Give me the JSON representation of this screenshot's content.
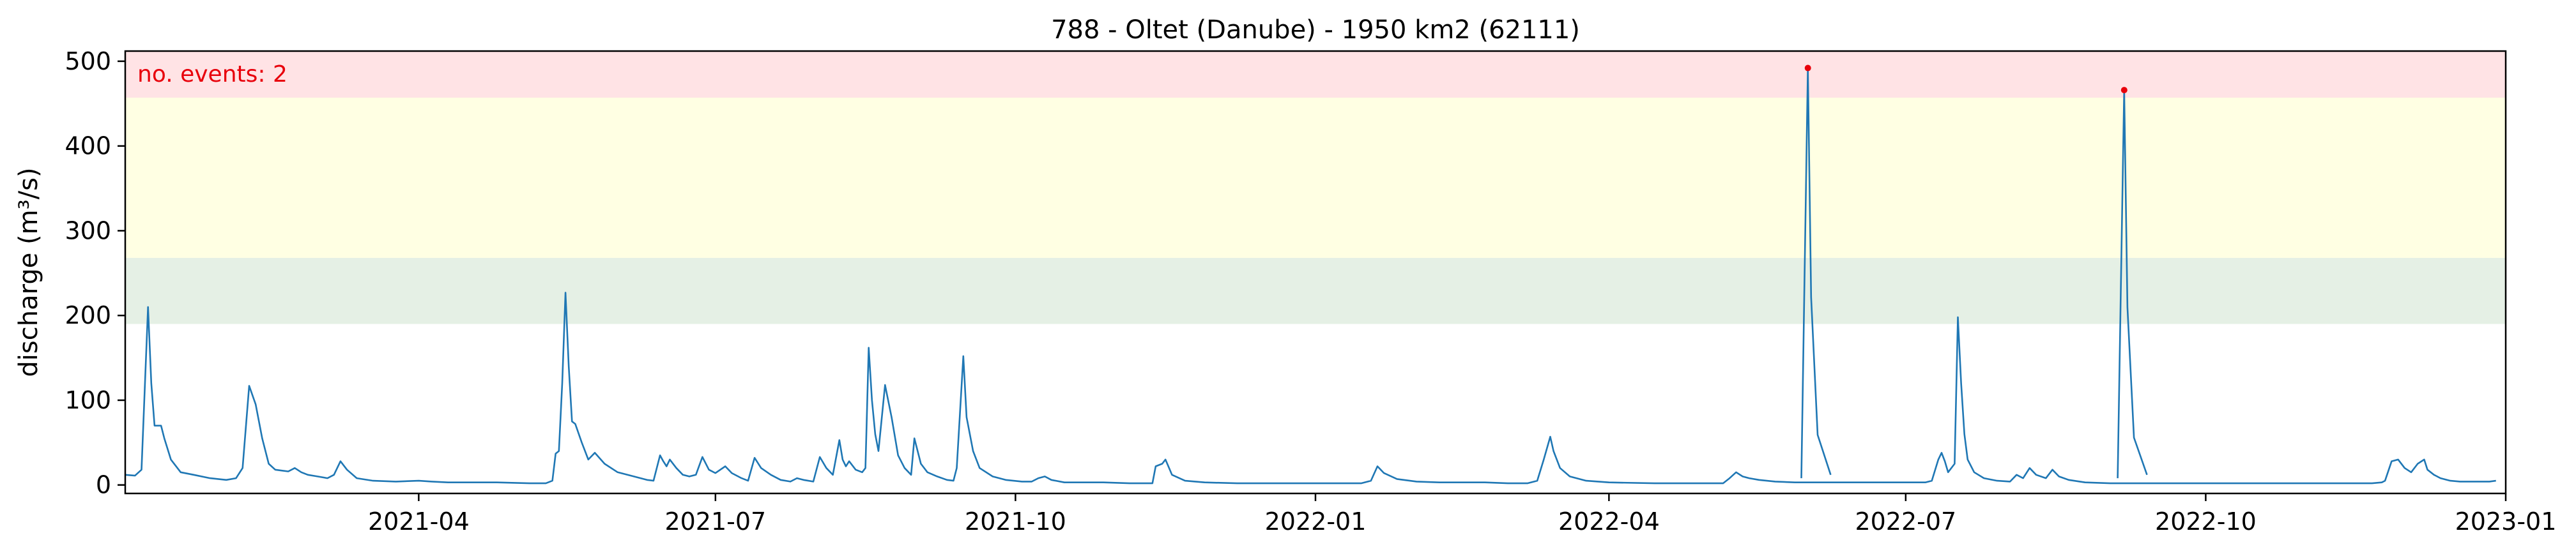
{
  "chart_data": {
    "type": "line",
    "title": "788 - Oltet (Danube) - 1950 km2 (62111)",
    "xlabel": "",
    "ylabel": "discharge (m³/s)",
    "xlim": [
      "2021-01-01",
      "2023-01-01"
    ],
    "ylim": [
      -10,
      512
    ],
    "yticks": [
      0,
      100,
      200,
      300,
      400,
      500
    ],
    "ytick_labels": [
      "0",
      "100",
      "200",
      "300",
      "400",
      "500"
    ],
    "xticks": [
      "2021-04-01",
      "2021-07-01",
      "2021-10-01",
      "2022-01-01",
      "2022-04-01",
      "2022-07-01",
      "2022-10-01",
      "2023-01-01"
    ],
    "xtick_labels": [
      "2021-04",
      "2021-07",
      "2021-10",
      "2022-01",
      "2022-04",
      "2022-07",
      "2022-10",
      "2023-01"
    ],
    "grid": false,
    "bands": [
      {
        "name": "band-green",
        "from": 190,
        "to": 268,
        "color": "#e5f0e5"
      },
      {
        "name": "band-yellow",
        "from": 268,
        "to": 457,
        "color": "#ffffe3"
      },
      {
        "name": "band-red",
        "from": 457,
        "to": 512,
        "color": "#ffe3e5"
      }
    ],
    "annotation": {
      "text": "no. events: 2",
      "color": "#e8000b",
      "position": "top-left"
    },
    "line_color": "#1f77b4",
    "event_color": "#e8000b",
    "events": [
      {
        "x": "2022-06-01",
        "y": 492
      },
      {
        "x": "2022-09-06",
        "y": 466
      }
    ],
    "series": [
      {
        "color": "#1f77b4",
        "points": [
          [
            "2021-01-01",
            12
          ],
          [
            "2021-01-04",
            11
          ],
          [
            "2021-01-06",
            18
          ],
          [
            "2021-01-08",
            210
          ],
          [
            "2021-01-09",
            120
          ],
          [
            "2021-01-10",
            70
          ],
          [
            "2021-01-12",
            70
          ],
          [
            "2021-01-13",
            55
          ],
          [
            "2021-01-15",
            30
          ],
          [
            "2021-01-18",
            15
          ],
          [
            "2021-01-22",
            12
          ],
          [
            "2021-01-27",
            8
          ],
          [
            "2021-02-01",
            6
          ],
          [
            "2021-02-04",
            8
          ],
          [
            "2021-02-06",
            20
          ],
          [
            "2021-02-08",
            117
          ],
          [
            "2021-02-10",
            95
          ],
          [
            "2021-02-12",
            55
          ],
          [
            "2021-02-14",
            25
          ],
          [
            "2021-02-16",
            18
          ],
          [
            "2021-02-18",
            17
          ],
          [
            "2021-02-20",
            16
          ],
          [
            "2021-02-22",
            20
          ],
          [
            "2021-02-24",
            15
          ],
          [
            "2021-02-26",
            12
          ],
          [
            "2021-03-01",
            10
          ],
          [
            "2021-03-04",
            8
          ],
          [
            "2021-03-06",
            12
          ],
          [
            "2021-03-08",
            28
          ],
          [
            "2021-03-10",
            18
          ],
          [
            "2021-03-13",
            8
          ],
          [
            "2021-03-18",
            5
          ],
          [
            "2021-03-25",
            4
          ],
          [
            "2021-04-01",
            5
          ],
          [
            "2021-04-05",
            4
          ],
          [
            "2021-04-10",
            3
          ],
          [
            "2021-04-15",
            3
          ],
          [
            "2021-04-20",
            3
          ],
          [
            "2021-04-25",
            3
          ],
          [
            "2021-05-05",
            2
          ],
          [
            "2021-05-10",
            2
          ],
          [
            "2021-05-12",
            5
          ],
          [
            "2021-05-13",
            37
          ],
          [
            "2021-05-14",
            40
          ],
          [
            "2021-05-15",
            120
          ],
          [
            "2021-05-16",
            227
          ],
          [
            "2021-05-17",
            140
          ],
          [
            "2021-05-18",
            75
          ],
          [
            "2021-05-19",
            72
          ],
          [
            "2021-05-21",
            50
          ],
          [
            "2021-05-23",
            30
          ],
          [
            "2021-05-25",
            38
          ],
          [
            "2021-05-28",
            25
          ],
          [
            "2021-06-01",
            15
          ],
          [
            "2021-06-06",
            10
          ],
          [
            "2021-06-10",
            6
          ],
          [
            "2021-06-12",
            5
          ],
          [
            "2021-06-14",
            35
          ],
          [
            "2021-06-15",
            28
          ],
          [
            "2021-06-16",
            22
          ],
          [
            "2021-06-17",
            30
          ],
          [
            "2021-06-19",
            20
          ],
          [
            "2021-06-21",
            12
          ],
          [
            "2021-06-23",
            10
          ],
          [
            "2021-06-25",
            12
          ],
          [
            "2021-06-27",
            33
          ],
          [
            "2021-06-29",
            18
          ],
          [
            "2021-07-01",
            14
          ],
          [
            "2021-07-04",
            22
          ],
          [
            "2021-07-06",
            14
          ],
          [
            "2021-07-09",
            8
          ],
          [
            "2021-07-11",
            5
          ],
          [
            "2021-07-13",
            32
          ],
          [
            "2021-07-15",
            20
          ],
          [
            "2021-07-18",
            12
          ],
          [
            "2021-07-21",
            6
          ],
          [
            "2021-07-24",
            4
          ],
          [
            "2021-07-26",
            8
          ],
          [
            "2021-07-28",
            6
          ],
          [
            "2021-07-31",
            4
          ],
          [
            "2021-08-02",
            33
          ],
          [
            "2021-08-04",
            20
          ],
          [
            "2021-08-06",
            12
          ],
          [
            "2021-08-08",
            53
          ],
          [
            "2021-08-09",
            30
          ],
          [
            "2021-08-10",
            22
          ],
          [
            "2021-08-11",
            28
          ],
          [
            "2021-08-13",
            18
          ],
          [
            "2021-08-15",
            15
          ],
          [
            "2021-08-16",
            20
          ],
          [
            "2021-08-17",
            162
          ],
          [
            "2021-08-18",
            100
          ],
          [
            "2021-08-19",
            60
          ],
          [
            "2021-08-20",
            40
          ],
          [
            "2021-08-22",
            118
          ],
          [
            "2021-08-24",
            80
          ],
          [
            "2021-08-26",
            35
          ],
          [
            "2021-08-28",
            20
          ],
          [
            "2021-08-30",
            12
          ],
          [
            "2021-08-31",
            55
          ],
          [
            "2021-09-02",
            25
          ],
          [
            "2021-09-04",
            15
          ],
          [
            "2021-09-07",
            10
          ],
          [
            "2021-09-10",
            6
          ],
          [
            "2021-09-12",
            5
          ],
          [
            "2021-09-13",
            20
          ],
          [
            "2021-09-15",
            152
          ],
          [
            "2021-09-16",
            80
          ],
          [
            "2021-09-18",
            40
          ],
          [
            "2021-09-20",
            20
          ],
          [
            "2021-09-24",
            10
          ],
          [
            "2021-09-28",
            6
          ],
          [
            "2021-10-03",
            4
          ],
          [
            "2021-10-06",
            4
          ],
          [
            "2021-10-08",
            8
          ],
          [
            "2021-10-10",
            10
          ],
          [
            "2021-10-12",
            6
          ],
          [
            "2021-10-16",
            3
          ],
          [
            "2021-10-22",
            3
          ],
          [
            "2021-10-28",
            3
          ],
          [
            "2021-11-05",
            2
          ],
          [
            "2021-11-12",
            2
          ],
          [
            "2021-11-13",
            22
          ],
          [
            "2021-11-15",
            25
          ],
          [
            "2021-11-16",
            30
          ],
          [
            "2021-11-18",
            12
          ],
          [
            "2021-11-22",
            5
          ],
          [
            "2021-11-28",
            3
          ],
          [
            "2021-12-08",
            2
          ],
          [
            "2021-12-18",
            2
          ],
          [
            "2021-12-28",
            2
          ],
          [
            "2022-01-08",
            2
          ],
          [
            "2022-01-15",
            2
          ],
          [
            "2022-01-18",
            5
          ],
          [
            "2022-01-20",
            22
          ],
          [
            "2022-01-22",
            14
          ],
          [
            "2022-01-26",
            7
          ],
          [
            "2022-02-01",
            4
          ],
          [
            "2022-02-08",
            3
          ],
          [
            "2022-02-15",
            3
          ],
          [
            "2022-02-22",
            3
          ],
          [
            "2022-03-01",
            2
          ],
          [
            "2022-03-07",
            2
          ],
          [
            "2022-03-10",
            5
          ],
          [
            "2022-03-12",
            30
          ],
          [
            "2022-03-14",
            57
          ],
          [
            "2022-03-15",
            40
          ],
          [
            "2022-03-17",
            20
          ],
          [
            "2022-03-20",
            10
          ],
          [
            "2022-03-25",
            5
          ],
          [
            "2022-04-01",
            3
          ],
          [
            "2022-04-15",
            2
          ],
          [
            "2022-05-01",
            2
          ],
          [
            "2022-05-06",
            2
          ],
          [
            "2022-05-08",
            8
          ],
          [
            "2022-05-10",
            15
          ],
          [
            "2022-05-12",
            10
          ],
          [
            "2022-05-14",
            8
          ],
          [
            "2022-05-17",
            6
          ],
          [
            "2022-05-22",
            4
          ],
          [
            "2022-05-28",
            3
          ],
          [
            "2022-06-04",
            3
          ],
          [
            "2022-06-10",
            3
          ],
          [
            "2022-06-18",
            3
          ],
          [
            "2022-06-25",
            3
          ],
          [
            "2022-07-02",
            3
          ],
          [
            "2022-07-07",
            3
          ],
          [
            "2022-07-09",
            5
          ],
          [
            "2022-07-11",
            30
          ],
          [
            "2022-07-12",
            38
          ],
          [
            "2022-07-13",
            28
          ],
          [
            "2022-07-14",
            15
          ],
          [
            "2022-07-16",
            25
          ],
          [
            "2022-07-17",
            198
          ],
          [
            "2022-07-18",
            120
          ],
          [
            "2022-07-19",
            60
          ],
          [
            "2022-07-20",
            30
          ],
          [
            "2022-07-22",
            15
          ],
          [
            "2022-07-25",
            8
          ],
          [
            "2022-07-29",
            5
          ],
          [
            "2022-08-02",
            4
          ],
          [
            "2022-08-04",
            12
          ],
          [
            "2022-08-06",
            8
          ],
          [
            "2022-08-08",
            20
          ],
          [
            "2022-08-10",
            12
          ],
          [
            "2022-08-13",
            8
          ],
          [
            "2022-08-15",
            18
          ],
          [
            "2022-08-17",
            10
          ],
          [
            "2022-08-20",
            6
          ],
          [
            "2022-08-25",
            3
          ],
          [
            "2022-09-02",
            2
          ],
          [
            "2022-09-12",
            2
          ],
          [
            "2022-09-22",
            2
          ],
          [
            "2022-10-02",
            2
          ],
          [
            "2022-10-12",
            2
          ],
          [
            "2022-10-22",
            2
          ],
          [
            "2022-11-01",
            2
          ],
          [
            "2022-11-11",
            2
          ],
          [
            "2022-11-21",
            2
          ],
          [
            "2022-11-24",
            3
          ],
          [
            "2022-11-25",
            5
          ],
          [
            "2022-11-27",
            28
          ],
          [
            "2022-11-29",
            30
          ],
          [
            "2022-12-01",
            20
          ],
          [
            "2022-12-03",
            15
          ],
          [
            "2022-12-05",
            25
          ],
          [
            "2022-12-07",
            30
          ],
          [
            "2022-12-08",
            18
          ],
          [
            "2022-12-10",
            12
          ],
          [
            "2022-12-12",
            8
          ],
          [
            "2022-12-15",
            5
          ],
          [
            "2022-12-18",
            4
          ],
          [
            "2022-12-24",
            4
          ],
          [
            "2022-12-27",
            4
          ],
          [
            "2022-12-29",
            5
          ]
        ]
      }
    ]
  }
}
